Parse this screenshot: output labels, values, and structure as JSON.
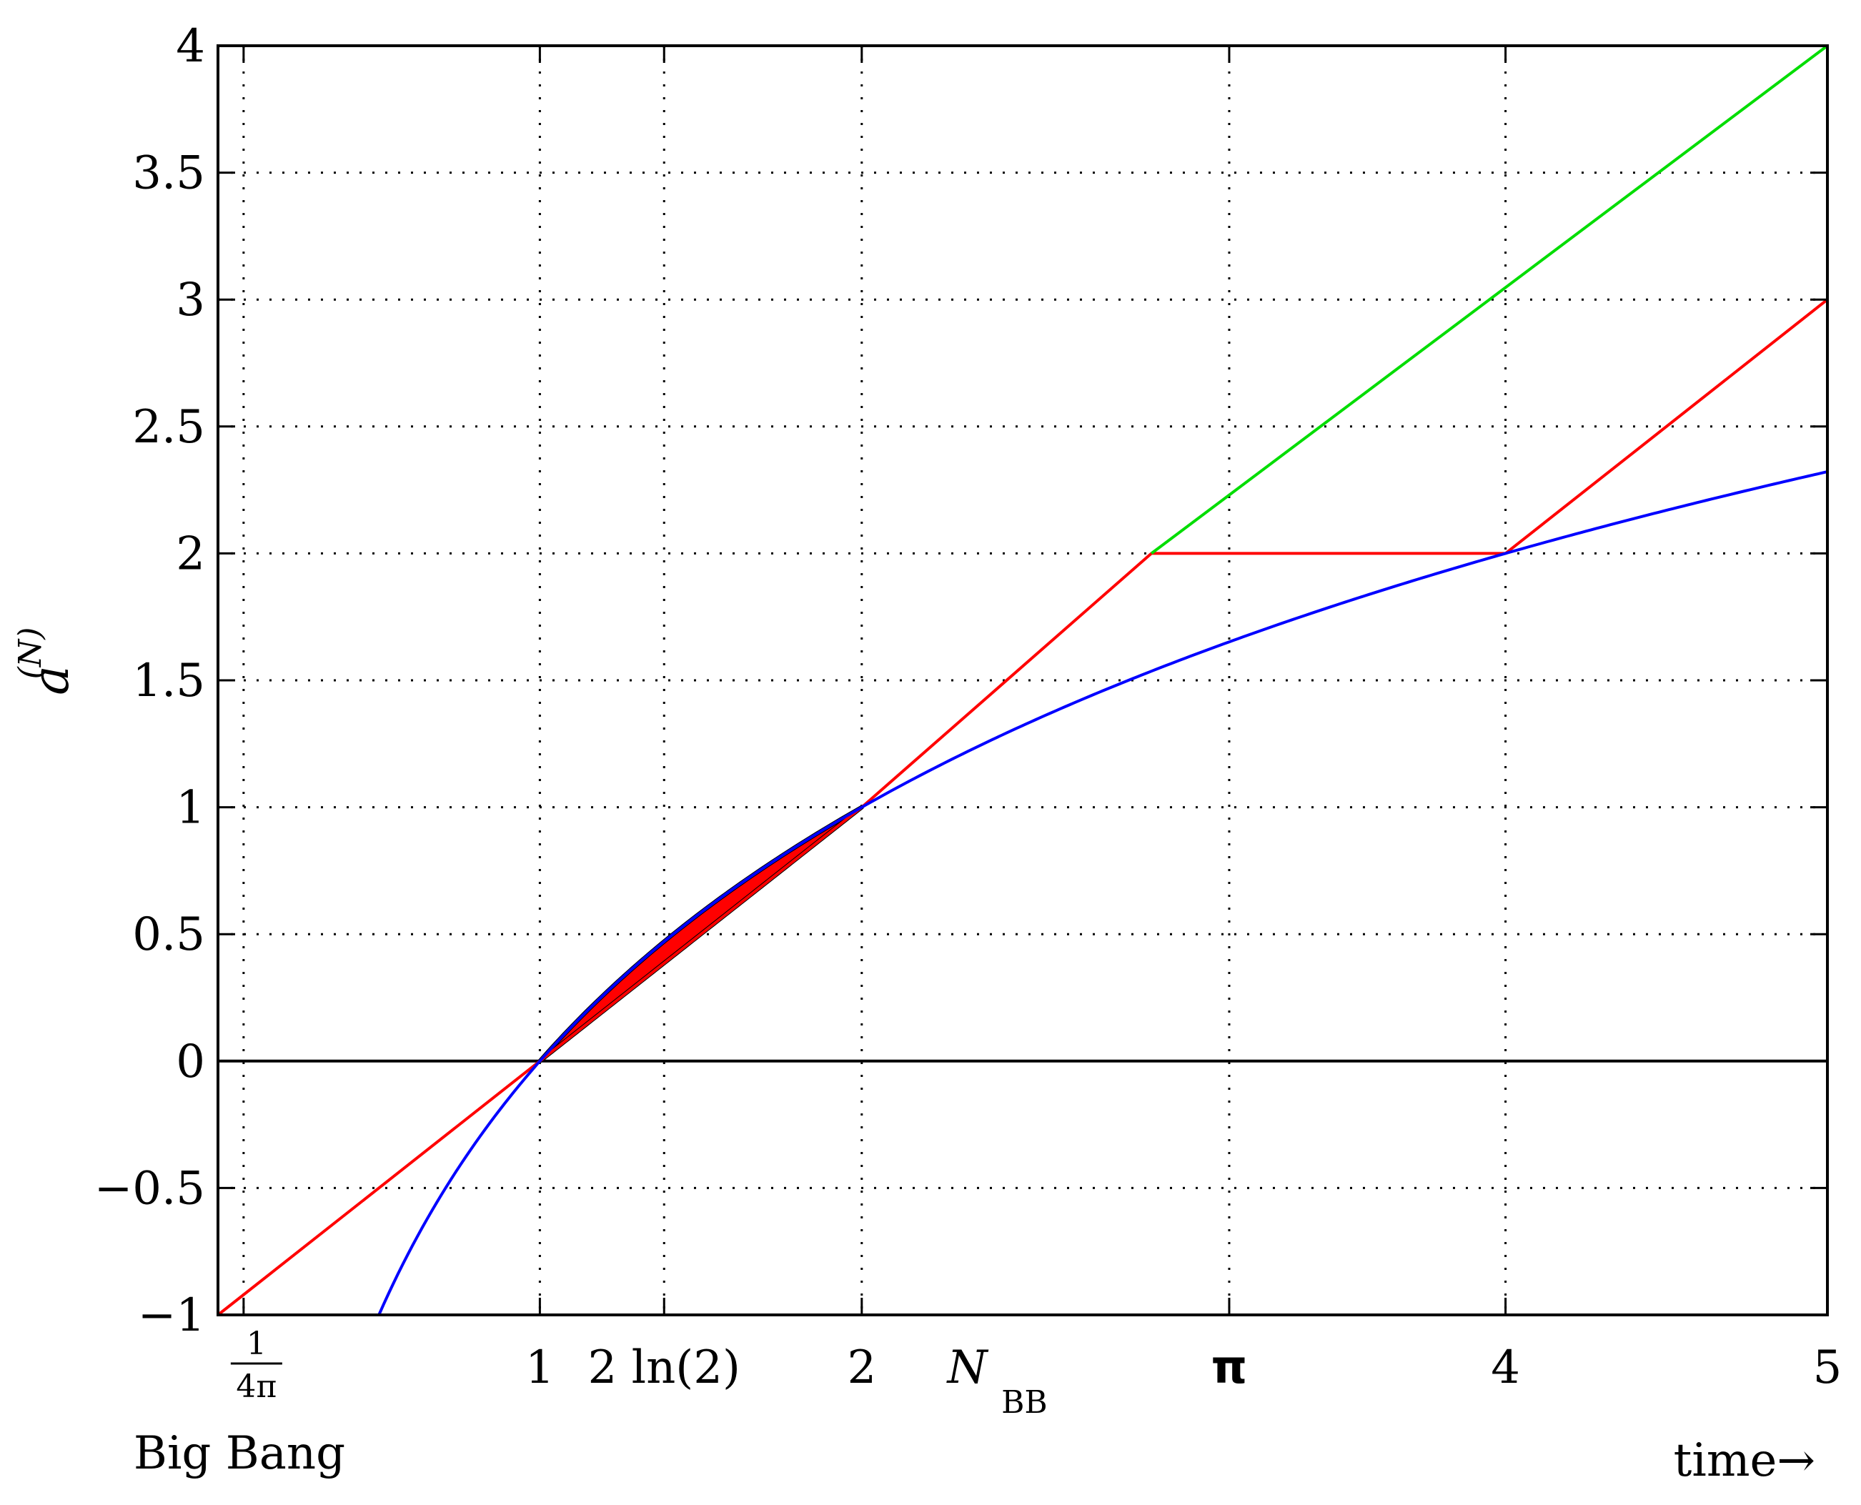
{
  "chart_data": {
    "type": "line",
    "xlabel": "time→",
    "ylabel": "a",
    "ylabel_superscript": "(N)",
    "xlim": [
      0.0,
      5.0
    ],
    "ylim": [
      -1,
      4
    ],
    "grid": true,
    "x_ticks": [
      {
        "value": 0.0796,
        "label": "1/4π",
        "kind": "fraction",
        "numerator": "1",
        "denominator": "4π"
      },
      {
        "value": 1,
        "label": "1",
        "kind": "plain"
      },
      {
        "value": 1.386,
        "label": "2 ln(2)",
        "kind": "plain"
      },
      {
        "value": 2,
        "label": "2",
        "kind": "plain"
      },
      {
        "value": 2.35,
        "label": "N",
        "kind": "subscript",
        "subscript": "BB",
        "tick": false
      },
      {
        "value": 3.1416,
        "label": "π",
        "kind": "bold"
      },
      {
        "value": 4,
        "label": "4",
        "kind": "plain"
      },
      {
        "value": 5,
        "label": "5",
        "kind": "plain"
      }
    ],
    "x_annotation": "Big Bang",
    "y_ticks": [
      -1,
      -0.5,
      0,
      0.5,
      1,
      1.5,
      2,
      2.5,
      3,
      3.5,
      4
    ],
    "y_tick_labels": [
      "−1",
      "−0.5",
      "0",
      "0.5",
      "1",
      "1.5",
      "2",
      "2.5",
      "3",
      "3.5",
      "4"
    ],
    "series": [
      {
        "color": "#ff0000",
        "x": [
          0,
          1,
          2,
          2.9,
          4,
          5
        ],
        "y": [
          -1,
          0,
          1,
          2,
          2,
          3
        ]
      },
      {
        "color": "#00dd00",
        "x": [
          2.9,
          5
        ],
        "y": [
          2,
          4
        ]
      },
      {
        "color": "#0000ff",
        "kind": "log2",
        "x_range": [
          0.5,
          5
        ]
      }
    ],
    "zero_line": {
      "y": 0,
      "color": "#000000"
    },
    "shaded_region": {
      "color": "#ff0000",
      "outline": "#000000",
      "x_range": [
        1,
        2
      ]
    }
  }
}
